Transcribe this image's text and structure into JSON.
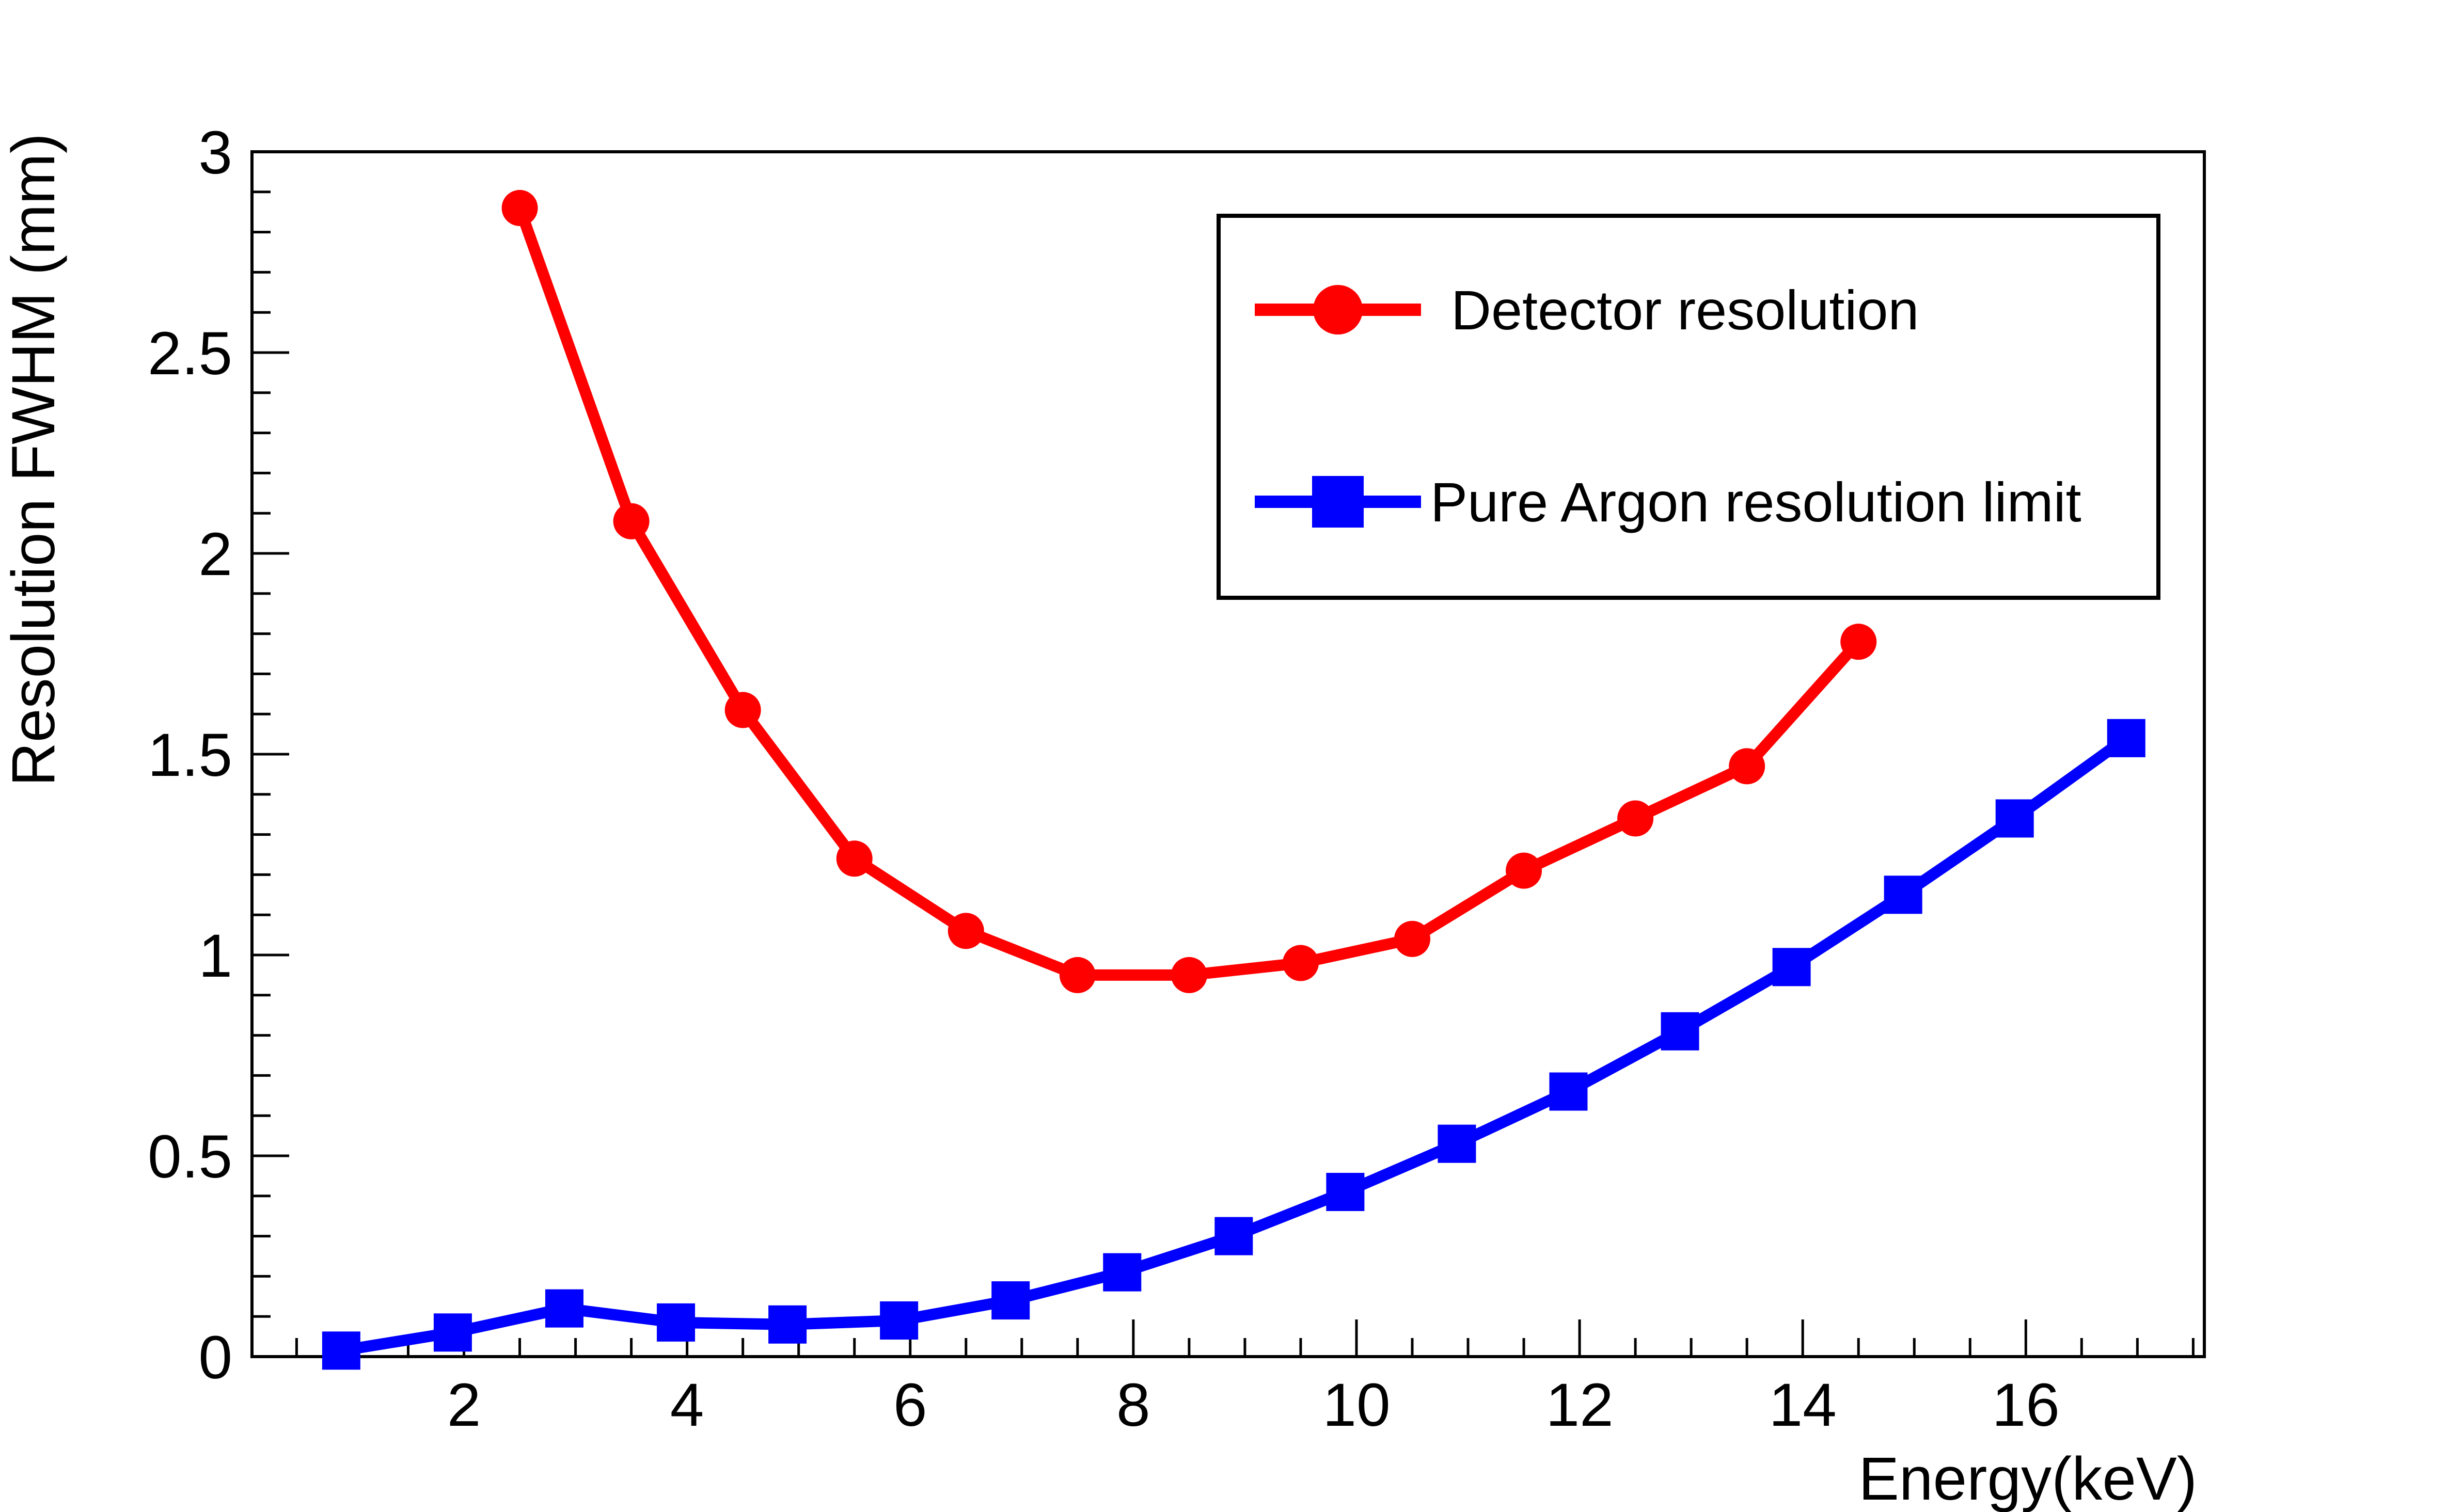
{
  "chart_data": {
    "type": "line",
    "title": "",
    "xlabel": "Energy(keV)",
    "ylabel": "Resolution FWHM (mm)",
    "xlim": [
      0.1,
      17.6
    ],
    "ylim": [
      0,
      3
    ],
    "x_major_ticks": [
      2,
      4,
      6,
      8,
      10,
      12,
      14,
      16
    ],
    "y_major_ticks": [
      0,
      0.5,
      1,
      1.5,
      2,
      2.5,
      3
    ],
    "x_tick_labels": [
      "2",
      "4",
      "6",
      "8",
      "10",
      "12",
      "14",
      "16"
    ],
    "y_tick_labels": [
      "0",
      "0.5",
      "1",
      "1.5",
      "2",
      "2.5",
      "3"
    ],
    "legend_position": "top-right",
    "grid": false,
    "series": [
      {
        "name": "Detector resolution",
        "color": "#ff0000",
        "marker": "circle",
        "x": [
          2.5,
          3.5,
          4.5,
          5.5,
          6.5,
          7.5,
          8.5,
          9.5,
          10.5,
          11.5,
          12.5,
          13.5,
          14.5
        ],
        "y": [
          2.86,
          2.08,
          1.61,
          1.24,
          1.06,
          0.95,
          0.95,
          0.98,
          1.04,
          1.21,
          1.34,
          1.47,
          1.78
        ]
      },
      {
        "name": "Pure Argon resolution limit",
        "color": "#0000ff",
        "marker": "square",
        "x": [
          0.9,
          1.9,
          2.9,
          3.9,
          4.9,
          5.9,
          6.9,
          7.9,
          8.9,
          9.9,
          10.9,
          11.9,
          12.9,
          13.9,
          14.9,
          15.9,
          16.9
        ],
        "y": [
          0.015,
          0.06,
          0.12,
          0.085,
          0.08,
          0.09,
          0.14,
          0.21,
          0.3,
          0.41,
          0.53,
          0.66,
          0.81,
          0.97,
          1.15,
          1.34,
          1.54
        ]
      }
    ]
  }
}
